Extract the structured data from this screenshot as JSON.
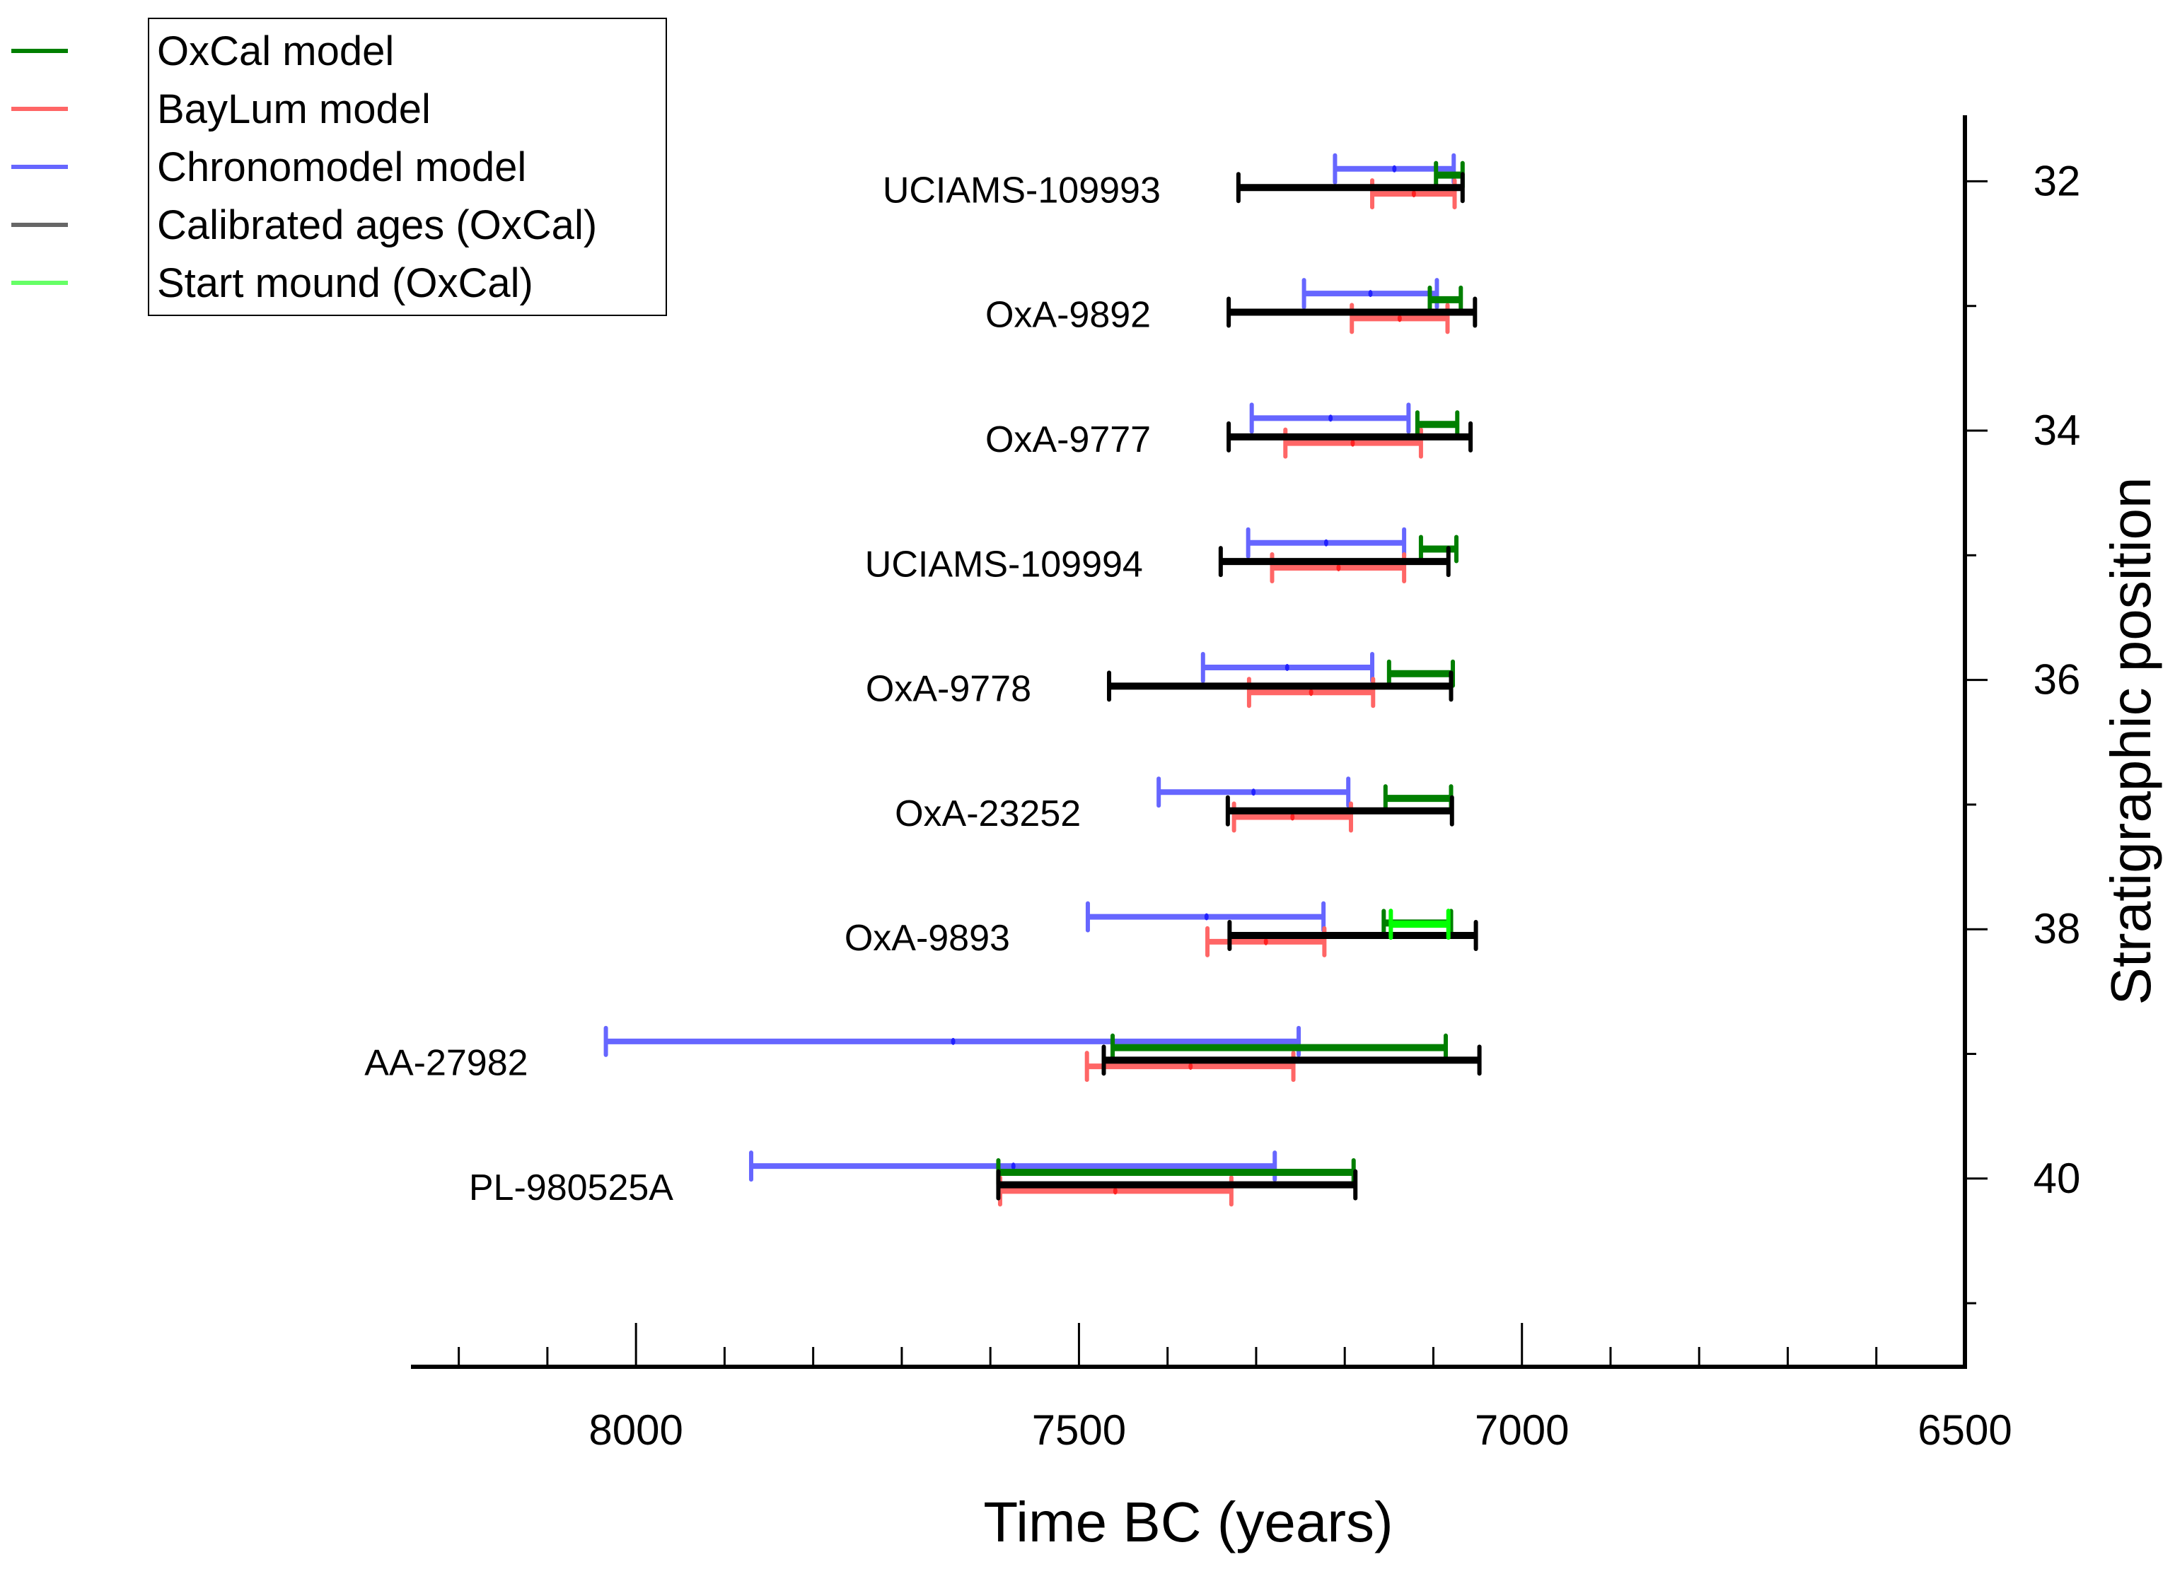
{
  "chart_data": {
    "type": "interval",
    "title": "",
    "xlabel": "Time BC (years)",
    "ylabel": "Stratigraphic position",
    "x_axis": {
      "reversed": true,
      "range": [
        8254,
        6500
      ],
      "major_ticks": [
        8000,
        7500,
        7000,
        6500
      ],
      "minor_step": 100,
      "position": "bottom"
    },
    "y_axis": {
      "reversed": true,
      "range": [
        31.47,
        41.51
      ],
      "major_ticks": [
        32,
        34,
        36,
        38,
        40
      ],
      "minor_step": 1,
      "position": "right"
    },
    "grid": false,
    "legend": {
      "placement": "top-left",
      "entries": [
        {
          "key": "oxcal",
          "label": "OxCal model",
          "color": "#007F00"
        },
        {
          "key": "baylum",
          "label": "BayLum model",
          "color": "#FF6666"
        },
        {
          "key": "chrono",
          "label": "Chronomodel model",
          "color": "#6666FF"
        },
        {
          "key": "calib",
          "label": "Calibrated ages (OxCal)",
          "color": "#000000",
          "legend_color": "#666666"
        },
        {
          "key": "start",
          "label": "Start mound (OxCal)",
          "color": "#00FF00",
          "legend_color": "#66FF66"
        }
      ]
    },
    "series_offsets": {
      "chrono": -0.1,
      "oxcal": -0.05,
      "start": -0.04,
      "calib": 0.05,
      "baylum": 0.1
    },
    "samples": [
      {
        "label": "UCIAMS-109993",
        "position": 32,
        "chrono": {
          "from": 7211,
          "to": 7077,
          "mid": 7144
        },
        "oxcal": {
          "from": 7097,
          "to": 7067
        },
        "calib": {
          "from": 7320,
          "to": 7067
        },
        "baylum": {
          "from": 7169,
          "to": 7076,
          "mid": 7122
        }
      },
      {
        "label": "OxA-9892",
        "position": 33,
        "chrono": {
          "from": 7246,
          "to": 7096,
          "mid": 7171
        },
        "oxcal": {
          "from": 7104,
          "to": 7069
        },
        "calib": {
          "from": 7331,
          "to": 7053
        },
        "baylum": {
          "from": 7192,
          "to": 7084,
          "mid": 7138
        }
      },
      {
        "label": "OxA-9777",
        "position": 34,
        "chrono": {
          "from": 7305,
          "to": 7128,
          "mid": 7216
        },
        "oxcal": {
          "from": 7118,
          "to": 7073
        },
        "calib": {
          "from": 7331,
          "to": 7058
        },
        "baylum": {
          "from": 7267,
          "to": 7114,
          "mid": 7191
        }
      },
      {
        "label": "UCIAMS-109994",
        "position": 35,
        "chrono": {
          "from": 7309,
          "to": 7133,
          "mid": 7221
        },
        "oxcal": {
          "from": 7114,
          "to": 7074
        },
        "calib": {
          "from": 7340,
          "to": 7083
        },
        "baylum": {
          "from": 7282,
          "to": 7133,
          "mid": 7207
        }
      },
      {
        "label": "OxA-9778",
        "position": 36,
        "chrono": {
          "from": 7360,
          "to": 7169,
          "mid": 7265
        },
        "oxcal": {
          "from": 7150,
          "to": 7078
        },
        "calib": {
          "from": 7466,
          "to": 7080
        },
        "baylum": {
          "from": 7308,
          "to": 7168,
          "mid": 7238
        }
      },
      {
        "label": "OxA-23252",
        "position": 37,
        "chrono": {
          "from": 7410,
          "to": 7196,
          "mid": 7303
        },
        "oxcal": {
          "from": 7154,
          "to": 7080
        },
        "calib": {
          "from": 7332,
          "to": 7079
        },
        "baylum": {
          "from": 7325,
          "to": 7193,
          "mid": 7259
        }
      },
      {
        "label": "OxA-9893",
        "position": 38,
        "chrono": {
          "from": 7490,
          "to": 7224,
          "mid": 7356
        },
        "oxcal": {
          "from": 7156,
          "to": 7080
        },
        "start": {
          "from": 7148,
          "to": 7083
        },
        "calib": {
          "from": 7330,
          "to": 7052
        },
        "baylum": {
          "from": 7355,
          "to": 7223,
          "mid": 7289
        }
      },
      {
        "label": "AA-27982",
        "position": 39,
        "chrono": {
          "from": 8034,
          "to": 7252,
          "mid": 7642
        },
        "oxcal": {
          "from": 7462,
          "to": 7086
        },
        "calib": {
          "from": 7472,
          "to": 7048
        },
        "baylum": {
          "from": 7491,
          "to": 7258,
          "mid": 7374
        }
      },
      {
        "label": "PL-980525A",
        "position": 40,
        "chrono": {
          "from": 7870,
          "to": 7279,
          "mid": 7574
        },
        "oxcal": {
          "from": 7591,
          "to": 7190
        },
        "calib": {
          "from": 7591,
          "to": 7188
        },
        "baylum": {
          "from": 7589,
          "to": 7328,
          "mid": 7459
        }
      }
    ]
  }
}
